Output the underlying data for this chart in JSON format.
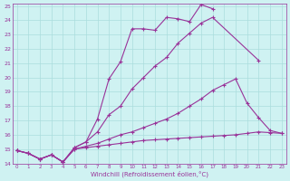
{
  "xlabel": "Windchill (Refroidissement éolien,°C)",
  "bg_color": "#cff2f2",
  "grid_color": "#aadddd",
  "line_color": "#993399",
  "xlim_min": 0,
  "xlim_max": 23,
  "ylim_min": 14,
  "ylim_max": 25,
  "xticks": [
    0,
    1,
    2,
    3,
    4,
    5,
    6,
    7,
    8,
    9,
    10,
    11,
    12,
    13,
    14,
    15,
    16,
    17,
    18,
    19,
    20,
    21,
    22,
    23
  ],
  "yticks": [
    14,
    15,
    16,
    17,
    18,
    19,
    20,
    21,
    22,
    23,
    24,
    25
  ],
  "lines": [
    {
      "x": [
        0,
        1,
        2,
        3,
        4,
        5,
        6,
        7,
        8,
        9,
        10,
        11,
        12,
        13,
        14,
        15,
        16,
        17
      ],
      "y": [
        14.9,
        14.7,
        14.3,
        14.6,
        14.1,
        15.1,
        15.5,
        17.1,
        19.9,
        21.1,
        23.4,
        23.4,
        23.3,
        24.2,
        24.1,
        23.9,
        25.1,
        24.8
      ]
    },
    {
      "x": [
        0,
        1,
        2,
        3,
        4,
        5,
        6,
        7,
        8,
        9,
        10,
        11,
        12,
        13,
        14,
        15,
        16,
        17,
        21
      ],
      "y": [
        14.9,
        14.7,
        14.3,
        14.6,
        14.1,
        15.1,
        15.5,
        16.2,
        17.4,
        18.0,
        19.2,
        20.0,
        20.8,
        21.4,
        22.4,
        23.1,
        23.8,
        24.2,
        21.2
      ]
    },
    {
      "x": [
        0,
        1,
        2,
        3,
        4,
        5,
        6,
        7,
        8,
        9,
        10,
        11,
        12,
        13,
        14,
        15,
        16,
        17,
        18,
        19,
        20,
        21,
        22,
        23
      ],
      "y": [
        14.9,
        14.7,
        14.3,
        14.6,
        14.1,
        15.0,
        15.2,
        15.4,
        15.7,
        16.0,
        16.2,
        16.5,
        16.8,
        17.1,
        17.5,
        18.0,
        18.5,
        19.1,
        19.5,
        19.9,
        18.2,
        17.2,
        16.3,
        16.1
      ]
    },
    {
      "x": [
        0,
        1,
        2,
        3,
        4,
        5,
        6,
        7,
        8,
        9,
        10,
        11,
        12,
        13,
        14,
        15,
        16,
        17,
        18,
        19,
        20,
        21,
        22,
        23
      ],
      "y": [
        14.9,
        14.7,
        14.3,
        14.6,
        14.1,
        15.0,
        15.1,
        15.2,
        15.3,
        15.4,
        15.5,
        15.6,
        15.65,
        15.7,
        15.75,
        15.8,
        15.85,
        15.9,
        15.95,
        16.0,
        16.1,
        16.2,
        16.15,
        16.1
      ]
    }
  ]
}
